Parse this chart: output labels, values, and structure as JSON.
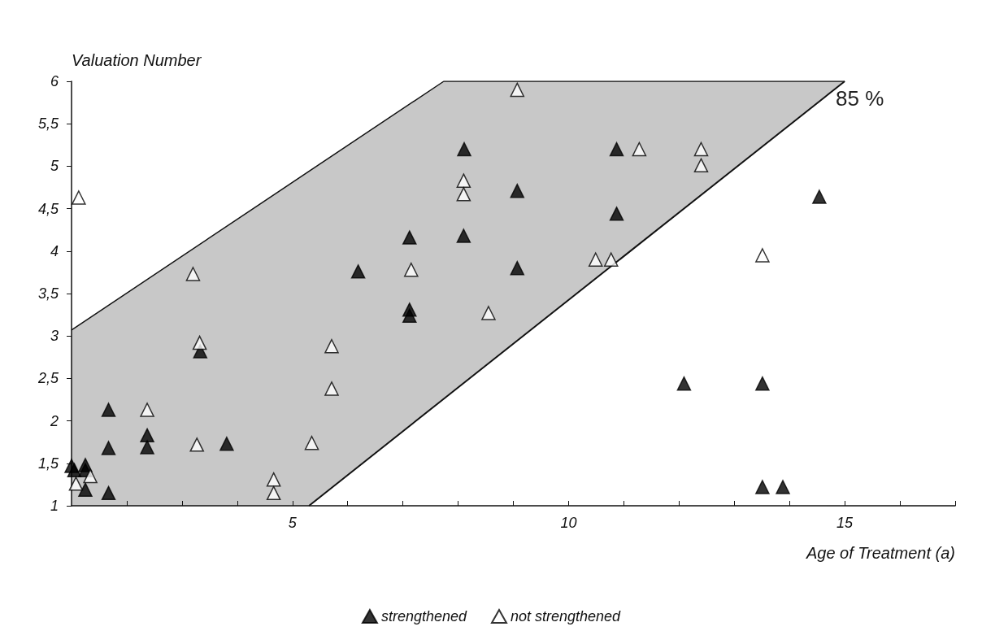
{
  "chart_data": {
    "type": "scatter",
    "ylabel": "Valuation Number",
    "xlabel": "Age of Treatment (a)",
    "xlim": [
      1,
      17
    ],
    "ylim": [
      1,
      6
    ],
    "xticks": [
      {
        "value": 2,
        "label": null
      },
      {
        "value": 3,
        "label": null
      },
      {
        "value": 4,
        "label": null
      },
      5,
      {
        "value": 6,
        "label": null
      },
      {
        "value": 7,
        "label": null
      },
      {
        "value": 8,
        "label": null
      },
      {
        "value": 9,
        "label": null
      },
      10,
      {
        "value": 11,
        "label": null
      },
      {
        "value": 12,
        "label": null
      },
      {
        "value": 13,
        "label": null
      },
      {
        "value": 14,
        "label": null
      },
      15,
      {
        "value": 16,
        "label": null
      },
      {
        "value": 17,
        "label": null
      }
    ],
    "yticks": [
      1,
      {
        "value": 1.5,
        "label": "1,5"
      },
      2,
      {
        "value": 2.5,
        "label": "2,5"
      },
      3,
      {
        "value": 3.5,
        "label": "3,5"
      },
      4,
      {
        "value": 4.5,
        "label": "4,5"
      },
      5,
      {
        "value": 5.5,
        "label": "5,5"
      },
      6
    ],
    "marker": "triangle",
    "legend": "bottom",
    "grid": false,
    "series": [
      {
        "type": "area",
        "marker": "none",
        "color": "#c8c8c8",
        "x": [
          1,
          5.3,
          7.74,
          15
        ],
        "values": [
          3.07,
          4.94,
          6,
          6
        ]
      },
      {
        "type": "line",
        "marker": "none",
        "color": "#111111",
        "x": [
          5.3,
          7.74,
          15
        ],
        "values": [
          1,
          2.26,
          6
        ]
      },
      {
        "name": "strengthened",
        "color": "#000000",
        "x": [
          1.0,
          1.05,
          1.25,
          1.25,
          1.25,
          1.67,
          1.67,
          1.67,
          2.37,
          2.37,
          3.33,
          3.81,
          8.11,
          10.87,
          9.07,
          10.87,
          7.12,
          8.1,
          6.19,
          9.07,
          7.12,
          7.12,
          14.54,
          12.09,
          13.51,
          13.51,
          13.88
        ],
        "values": [
          1.47,
          1.42,
          1.48,
          1.42,
          1.19,
          1.15,
          2.13,
          1.68,
          1.83,
          1.69,
          2.82,
          1.73,
          5.2,
          5.2,
          4.71,
          4.44,
          4.16,
          4.18,
          3.76,
          3.8,
          3.31,
          3.24,
          4.64,
          2.44,
          2.44,
          1.22,
          1.22
        ]
      },
      {
        "name": "not strengthened",
        "color": "#ffffff",
        "x": [
          1.13,
          3.2,
          3.32,
          2.37,
          3.27,
          5.35,
          4.66,
          4.66,
          5.71,
          5.71,
          1.08,
          1.34,
          9.07,
          11.28,
          8.1,
          8.1,
          7.15,
          8.55,
          10.49,
          10.77,
          12.4,
          12.4,
          13.51
        ],
        "values": [
          4.63,
          3.73,
          2.92,
          2.13,
          1.72,
          1.74,
          1.31,
          1.15,
          2.88,
          2.38,
          1.26,
          1.35,
          5.9,
          5.2,
          4.83,
          4.67,
          3.78,
          3.27,
          3.9,
          3.9,
          5.2,
          5.01,
          3.95
        ]
      }
    ],
    "annotations": [
      "85 %"
    ]
  }
}
